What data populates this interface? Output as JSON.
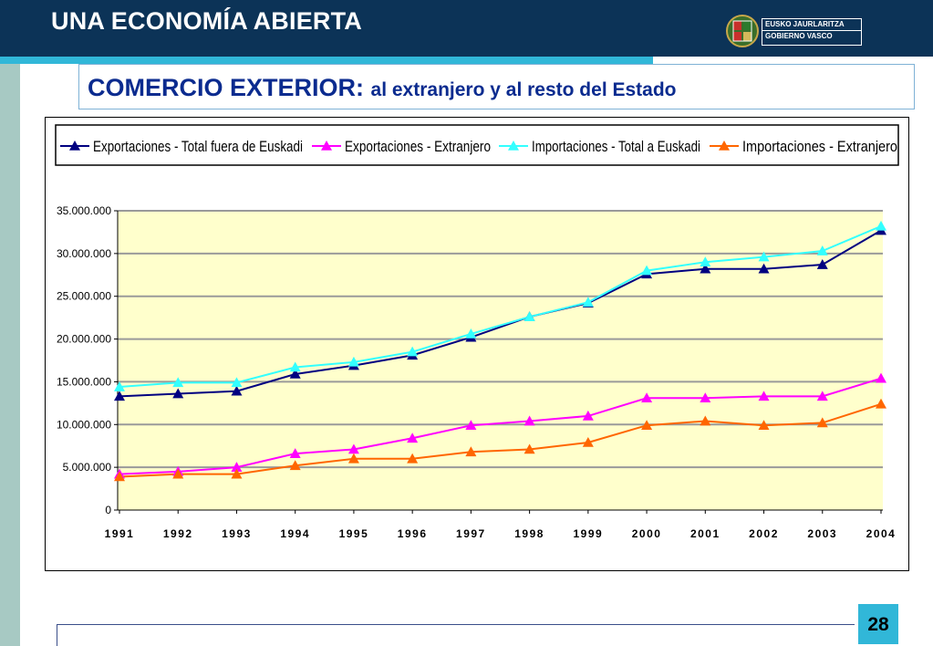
{
  "header": {
    "title": "UNA ECONOMÍA ABIERTA",
    "logo_line1": "EUSKO JAURLARITZA",
    "logo_line2": "GOBIERNO VASCO"
  },
  "subtitle": {
    "main": "COMERCIO EXTERIOR:",
    "sub": "al extranjero y al resto del Estado"
  },
  "page_number": "28",
  "colors": {
    "header_bg": "#0c3357",
    "accent": "#31b7d8",
    "plot_bg": "#ffffcc"
  },
  "chart_data": {
    "type": "line",
    "title": "",
    "xlabel": "",
    "ylabel": "",
    "x": [
      "1991",
      "1992",
      "1993",
      "1994",
      "1995",
      "1996",
      "1997",
      "1998",
      "1999",
      "2000",
      "2001",
      "2002",
      "2003",
      "2004"
    ],
    "ylim": [
      0,
      35000000
    ],
    "y_ticks": [
      0,
      5000000,
      10000000,
      15000000,
      20000000,
      25000000,
      30000000,
      35000000
    ],
    "y_tick_labels": [
      "0",
      "5.000.000",
      "10.000.000",
      "15.000.000",
      "20.000.000",
      "25.000.000",
      "30.000.000",
      "35.000.000"
    ],
    "grid": true,
    "legend_position": "top",
    "series": [
      {
        "name": "Exportaciones - Total fuera de Euskadi",
        "color": "#000080",
        "marker": "triangle",
        "values": [
          13300000,
          13600000,
          13900000,
          15900000,
          16900000,
          18100000,
          20200000,
          22600000,
          24200000,
          27600000,
          28200000,
          28200000,
          28700000,
          32700000
        ]
      },
      {
        "name": "Exportaciones - Extranjero",
        "color": "#ff00ff",
        "marker": "triangle",
        "values": [
          4200000,
          4500000,
          5000000,
          6600000,
          7100000,
          8400000,
          9900000,
          10400000,
          11000000,
          13100000,
          13100000,
          13300000,
          13300000,
          15400000
        ]
      },
      {
        "name": "Importaciones - Total a Euskadi",
        "color": "#33ffff",
        "marker": "triangle",
        "values": [
          14400000,
          14900000,
          14900000,
          16700000,
          17300000,
          18500000,
          20600000,
          22600000,
          24300000,
          28000000,
          29000000,
          29600000,
          30300000,
          33200000
        ]
      },
      {
        "name": "Importaciones - Extranjero",
        "color": "#ff6600",
        "marker": "triangle",
        "values": [
          3900000,
          4200000,
          4200000,
          5200000,
          6000000,
          6000000,
          6800000,
          7100000,
          7900000,
          9900000,
          10400000,
          9900000,
          10200000,
          12400000
        ]
      }
    ]
  }
}
